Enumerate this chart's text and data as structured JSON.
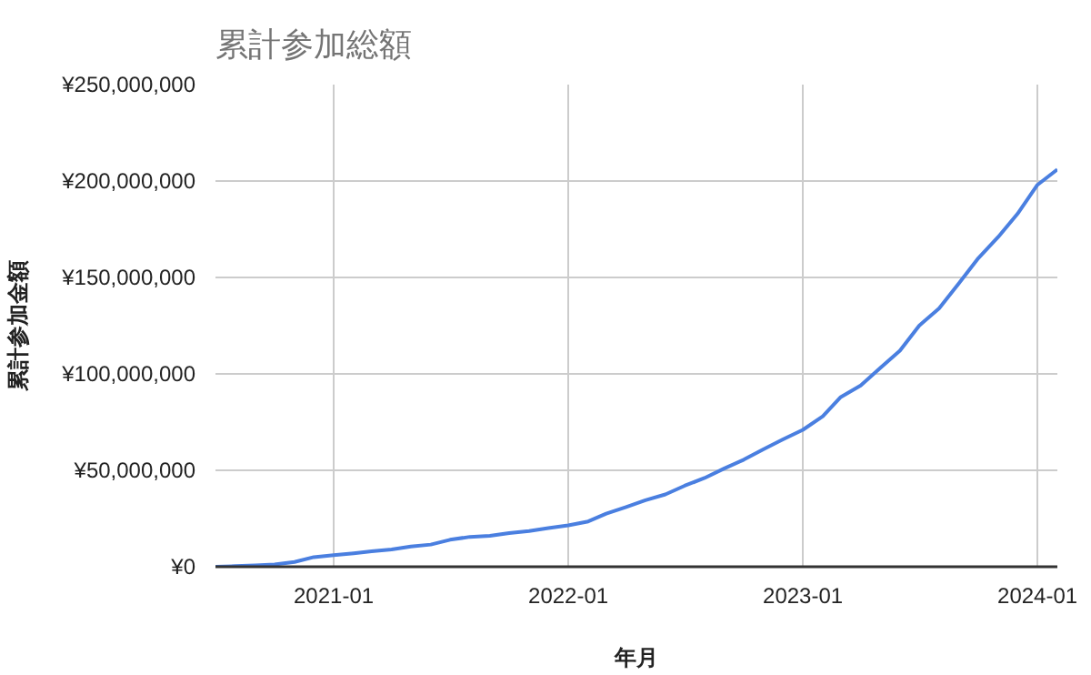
{
  "chart_data": {
    "type": "line",
    "title": "累計参加総額",
    "xlabel": "年月",
    "ylabel": "累計参加金額",
    "x": [
      "2020-07",
      "2020-08",
      "2020-09",
      "2020-10",
      "2020-11",
      "2020-12",
      "2021-01",
      "2021-02",
      "2021-03",
      "2021-04",
      "2021-05",
      "2021-06",
      "2021-07",
      "2021-08",
      "2021-09",
      "2021-10",
      "2021-11",
      "2021-12",
      "2022-01",
      "2022-02",
      "2022-03",
      "2022-04",
      "2022-05",
      "2022-06",
      "2022-07",
      "2022-08",
      "2022-09",
      "2022-10",
      "2022-11",
      "2022-12",
      "2023-01",
      "2023-02",
      "2023-03",
      "2023-04",
      "2023-05",
      "2023-06",
      "2023-07",
      "2023-08",
      "2023-09",
      "2023-10",
      "2023-11",
      "2023-12",
      "2024-01",
      "2024-02"
    ],
    "series": [
      {
        "color": "#4a7fe0",
        "values": [
          0,
          300000,
          700000,
          1200000,
          2500000,
          5000000,
          6000000,
          7000000,
          8000000,
          9000000,
          10500000,
          11500000,
          14000000,
          15500000,
          16000000,
          17500000,
          18500000,
          20000000,
          21500000,
          23500000,
          27500000,
          31000000,
          34500000,
          37500000,
          42000000,
          46000000,
          51000000,
          55500000,
          61000000,
          66000000,
          71000000,
          78000000,
          88000000,
          94000000,
          103000000,
          112000000,
          125000000,
          134000000,
          147000000,
          160000000,
          171000000,
          183000000,
          198000000,
          206000000
        ]
      }
    ],
    "xlim": [
      "2020-07",
      "2024-02"
    ],
    "xticks": [
      "2021-01",
      "2022-01",
      "2023-01",
      "2024-01"
    ],
    "ylim": [
      0,
      250000000
    ],
    "yticks": [
      {
        "value": 0,
        "label": "¥0"
      },
      {
        "value": 50000000,
        "label": "¥50,000,000"
      },
      {
        "value": 100000000,
        "label": "¥100,000,000"
      },
      {
        "value": 150000000,
        "label": "¥150,000,000"
      },
      {
        "value": 200000000,
        "label": "¥200,000,000"
      },
      {
        "value": 250000000,
        "label": "¥250,000,000"
      }
    ],
    "grid": true,
    "marker": "none",
    "line_style": "solid"
  }
}
